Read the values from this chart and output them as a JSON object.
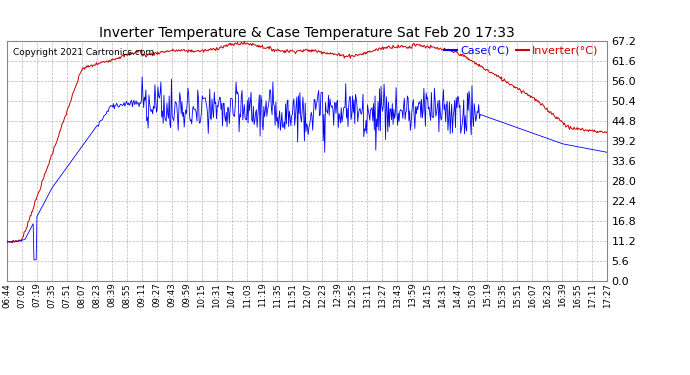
{
  "title": "Inverter Temperature & Case Temperature Sat Feb 20 17:33",
  "copyright": "Copyright 2021 Cartronics.com",
  "legend_case": "Case(°C)",
  "legend_inverter": "Inverter(°C)",
  "background_color": "#ffffff",
  "plot_bg_color": "#ffffff",
  "grid_color": "#b0b0b0",
  "case_color": "#0000ff",
  "inverter_color": "#cc0000",
  "ylim": [
    0.0,
    67.2
  ],
  "yticks": [
    0.0,
    5.6,
    11.2,
    16.8,
    22.4,
    28.0,
    33.6,
    39.2,
    44.8,
    50.4,
    56.0,
    61.6,
    67.2
  ],
  "xtick_labels": [
    "06:44",
    "07:02",
    "07:19",
    "07:35",
    "07:51",
    "08:07",
    "08:23",
    "08:39",
    "08:55",
    "09:11",
    "09:27",
    "09:43",
    "09:59",
    "10:15",
    "10:31",
    "10:47",
    "11:03",
    "11:19",
    "11:35",
    "11:51",
    "12:07",
    "12:23",
    "12:39",
    "12:55",
    "13:11",
    "13:27",
    "13:43",
    "13:59",
    "14:15",
    "14:31",
    "14:47",
    "15:03",
    "15:19",
    "15:35",
    "15:51",
    "16:07",
    "16:23",
    "16:39",
    "16:55",
    "17:11",
    "17:27"
  ],
  "n_points": 800,
  "figsize": [
    6.9,
    3.75
  ],
  "dpi": 100
}
